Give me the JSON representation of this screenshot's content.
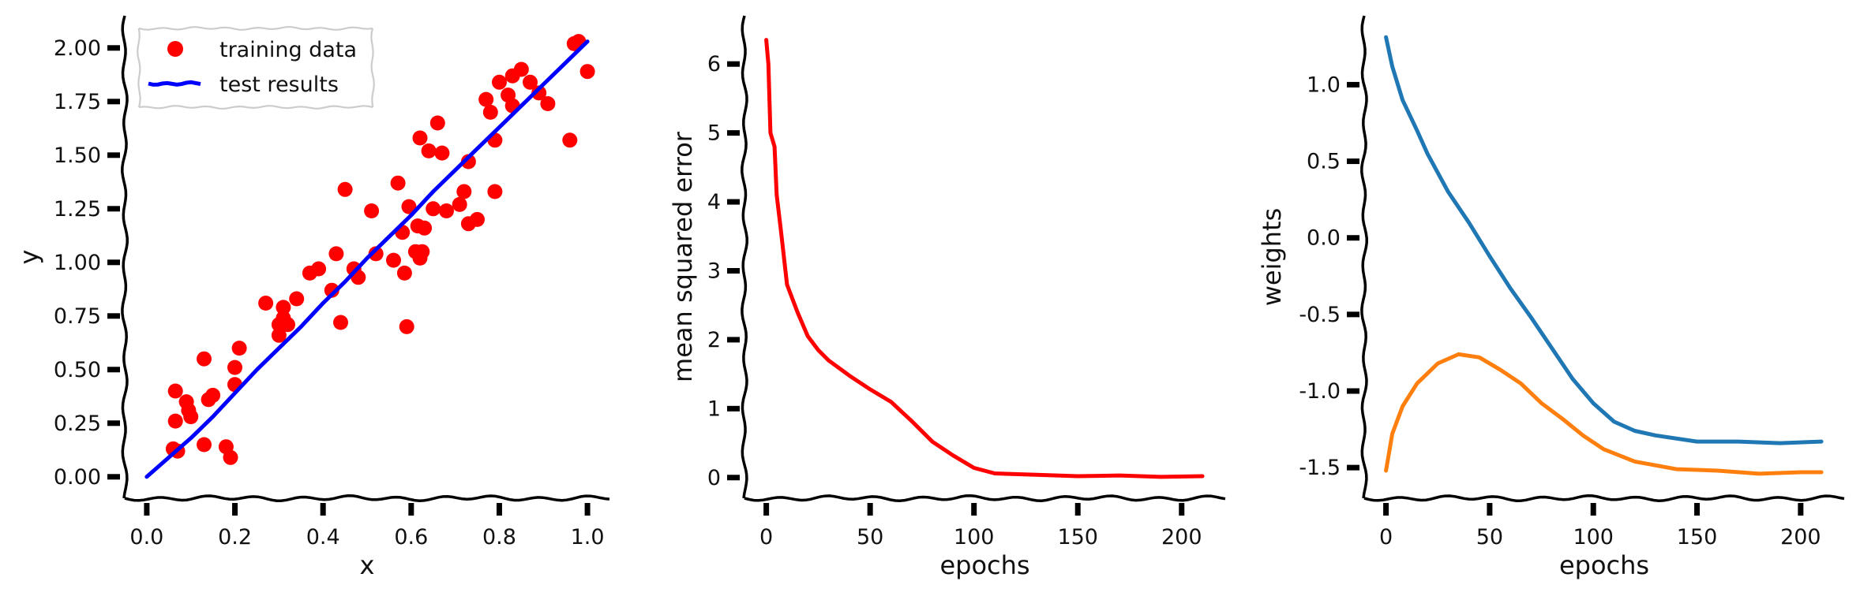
{
  "chart_data": [
    {
      "type": "scatter",
      "title": "",
      "xlabel": "x",
      "ylabel": "y",
      "xlim": [
        -0.05,
        1.05
      ],
      "ylim": [
        -0.1,
        2.15
      ],
      "xticks": [
        "0.0",
        "0.2",
        "0.4",
        "0.6",
        "0.8",
        "1.0"
      ],
      "yticks": [
        "0.00",
        "0.25",
        "0.50",
        "0.75",
        "1.00",
        "1.25",
        "1.50",
        "1.75",
        "2.00"
      ],
      "legend_position": "top-left",
      "series": [
        {
          "name": "training data",
          "color": "#ff0000",
          "points": [
            [
              0.06,
              0.13
            ],
            [
              0.07,
              0.12
            ],
            [
              0.065,
              0.26
            ],
            [
              0.065,
              0.4
            ],
            [
              0.09,
              0.35
            ],
            [
              0.095,
              0.31
            ],
            [
              0.1,
              0.28
            ],
            [
              0.13,
              0.15
            ],
            [
              0.13,
              0.55
            ],
            [
              0.14,
              0.36
            ],
            [
              0.15,
              0.38
            ],
            [
              0.18,
              0.14
            ],
            [
              0.19,
              0.09
            ],
            [
              0.2,
              0.43
            ],
            [
              0.2,
              0.51
            ],
            [
              0.21,
              0.6
            ],
            [
              0.27,
              0.81
            ],
            [
              0.3,
              0.66
            ],
            [
              0.3,
              0.71
            ],
            [
              0.31,
              0.74
            ],
            [
              0.31,
              0.79
            ],
            [
              0.32,
              0.71
            ],
            [
              0.34,
              0.83
            ],
            [
              0.37,
              0.95
            ],
            [
              0.39,
              0.97
            ],
            [
              0.42,
              0.87
            ],
            [
              0.43,
              1.04
            ],
            [
              0.44,
              0.72
            ],
            [
              0.45,
              1.34
            ],
            [
              0.47,
              0.97
            ],
            [
              0.48,
              0.93
            ],
            [
              0.51,
              1.24
            ],
            [
              0.52,
              1.04
            ],
            [
              0.56,
              1.01
            ],
            [
              0.57,
              1.37
            ],
            [
              0.58,
              1.14
            ],
            [
              0.585,
              0.95
            ],
            [
              0.59,
              0.7
            ],
            [
              0.595,
              1.26
            ],
            [
              0.61,
              1.05
            ],
            [
              0.615,
              1.17
            ],
            [
              0.62,
              1.02
            ],
            [
              0.62,
              1.58
            ],
            [
              0.625,
              1.05
            ],
            [
              0.63,
              1.16
            ],
            [
              0.64,
              1.52
            ],
            [
              0.65,
              1.25
            ],
            [
              0.66,
              1.65
            ],
            [
              0.67,
              1.51
            ],
            [
              0.68,
              1.24
            ],
            [
              0.71,
              1.27
            ],
            [
              0.72,
              1.33
            ],
            [
              0.73,
              1.18
            ],
            [
              0.73,
              1.47
            ],
            [
              0.75,
              1.2
            ],
            [
              0.77,
              1.76
            ],
            [
              0.78,
              1.7
            ],
            [
              0.79,
              1.33
            ],
            [
              0.79,
              1.57
            ],
            [
              0.8,
              1.84
            ],
            [
              0.82,
              1.78
            ],
            [
              0.83,
              1.73
            ],
            [
              0.83,
              1.87
            ],
            [
              0.85,
              1.9
            ],
            [
              0.87,
              1.84
            ],
            [
              0.89,
              1.79
            ],
            [
              0.91,
              1.74
            ],
            [
              0.96,
              1.57
            ],
            [
              0.97,
              2.02
            ],
            [
              0.98,
              2.03
            ],
            [
              1.0,
              1.89
            ]
          ]
        },
        {
          "name": "test results",
          "color": "#0000ff",
          "line": [
            [
              0.0,
              0.0
            ],
            [
              0.05,
              0.09
            ],
            [
              0.1,
              0.18
            ],
            [
              0.15,
              0.28
            ],
            [
              0.2,
              0.39
            ],
            [
              0.25,
              0.5
            ],
            [
              0.3,
              0.6
            ],
            [
              0.35,
              0.7
            ],
            [
              0.4,
              0.81
            ],
            [
              0.45,
              0.91
            ],
            [
              0.5,
              1.02
            ],
            [
              0.55,
              1.12
            ],
            [
              0.6,
              1.22
            ],
            [
              0.65,
              1.33
            ],
            [
              0.7,
              1.43
            ],
            [
              0.75,
              1.53
            ],
            [
              0.8,
              1.63
            ],
            [
              0.85,
              1.73
            ],
            [
              0.9,
              1.83
            ],
            [
              0.95,
              1.93
            ],
            [
              1.0,
              2.03
            ]
          ]
        }
      ]
    },
    {
      "type": "line",
      "title": "",
      "xlabel": "epochs",
      "ylabel": "mean squared error",
      "xlim": [
        -10.5,
        221
      ],
      "ylim": [
        -0.3,
        6.7
      ],
      "xticks": [
        "0",
        "50",
        "100",
        "150",
        "200"
      ],
      "yticks": [
        "0",
        "1",
        "2",
        "3",
        "4",
        "5",
        "6"
      ],
      "series": [
        {
          "name": "",
          "color": "#ff0000",
          "line": [
            [
              0,
              6.35
            ],
            [
              1,
              6.0
            ],
            [
              2,
              5.0
            ],
            [
              4,
              4.8
            ],
            [
              5,
              4.1
            ],
            [
              7,
              3.6
            ],
            [
              10,
              2.8
            ],
            [
              15,
              2.4
            ],
            [
              20,
              2.05
            ],
            [
              25,
              1.85
            ],
            [
              30,
              1.7
            ],
            [
              40,
              1.48
            ],
            [
              50,
              1.28
            ],
            [
              60,
              1.1
            ],
            [
              70,
              0.82
            ],
            [
              80,
              0.52
            ],
            [
              90,
              0.32
            ],
            [
              100,
              0.14
            ],
            [
              110,
              0.06
            ],
            [
              130,
              0.04
            ],
            [
              150,
              0.02
            ],
            [
              170,
              0.03
            ],
            [
              190,
              0.01
            ],
            [
              210,
              0.02
            ]
          ]
        }
      ]
    },
    {
      "type": "line",
      "title": "",
      "xlabel": "epochs",
      "ylabel": "weights",
      "xlim": [
        -10.5,
        221
      ],
      "ylim": [
        -1.7,
        1.45
      ],
      "xticks": [
        "0",
        "50",
        "100",
        "150",
        "200"
      ],
      "yticks": [
        "1.0",
        "0.5",
        "0.0",
        "-0.5",
        "-1.0",
        "-1.5"
      ],
      "series": [
        {
          "name": "",
          "color": "#1f77b4",
          "line": [
            [
              0,
              1.31
            ],
            [
              3,
              1.12
            ],
            [
              8,
              0.9
            ],
            [
              15,
              0.7
            ],
            [
              20,
              0.55
            ],
            [
              30,
              0.3
            ],
            [
              40,
              0.1
            ],
            [
              50,
              -0.12
            ],
            [
              60,
              -0.33
            ],
            [
              70,
              -0.52
            ],
            [
              80,
              -0.72
            ],
            [
              90,
              -0.92
            ],
            [
              100,
              -1.08
            ],
            [
              110,
              -1.2
            ],
            [
              120,
              -1.26
            ],
            [
              130,
              -1.29
            ],
            [
              150,
              -1.33
            ],
            [
              170,
              -1.33
            ],
            [
              190,
              -1.34
            ],
            [
              210,
              -1.33
            ]
          ]
        },
        {
          "name": "",
          "color": "#ff7f0e",
          "line": [
            [
              0,
              -1.52
            ],
            [
              3,
              -1.28
            ],
            [
              8,
              -1.1
            ],
            [
              15,
              -0.95
            ],
            [
              25,
              -0.82
            ],
            [
              35,
              -0.76
            ],
            [
              45,
              -0.78
            ],
            [
              55,
              -0.86
            ],
            [
              65,
              -0.95
            ],
            [
              75,
              -1.08
            ],
            [
              85,
              -1.18
            ],
            [
              95,
              -1.29
            ],
            [
              105,
              -1.38
            ],
            [
              120,
              -1.46
            ],
            [
              140,
              -1.51
            ],
            [
              160,
              -1.52
            ],
            [
              180,
              -1.54
            ],
            [
              200,
              -1.53
            ],
            [
              210,
              -1.53
            ]
          ]
        }
      ]
    }
  ]
}
